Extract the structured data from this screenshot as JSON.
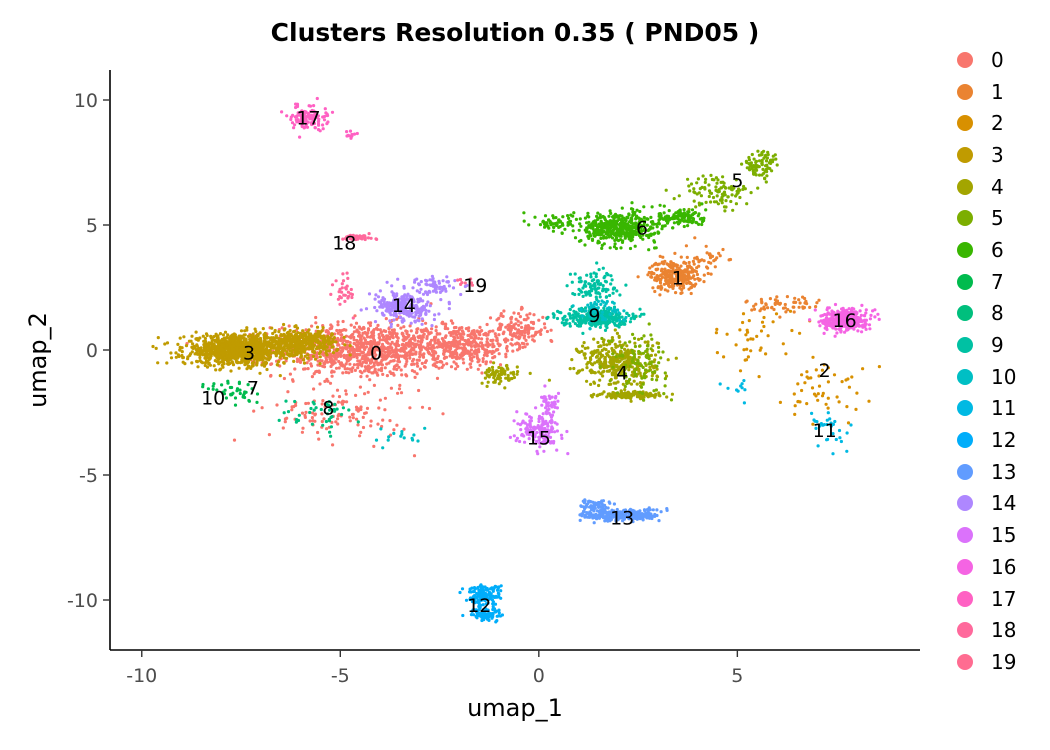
{
  "chart_data": {
    "type": "scatter",
    "title": "Clusters Resolution 0.35 ( PND05 )",
    "xlabel": "umap_1",
    "ylabel": "umap_2",
    "xlim": [
      -10.8,
      9.6
    ],
    "ylim": [
      -12.0,
      11.2
    ],
    "xticks": [
      -10,
      -5,
      0,
      5
    ],
    "yticks": [
      -10,
      -5,
      0,
      5,
      10
    ],
    "grid": false,
    "legend_position": "right",
    "point_size": 1.6,
    "series": [
      {
        "name": "0",
        "color": "#F8766D",
        "label_pos": [
          -4.1,
          -0.1
        ],
        "blobs": [
          [
            -4.5,
            0.0,
            1.8,
            0.9,
            900
          ],
          [
            -2.0,
            0.2,
            1.2,
            0.7,
            400
          ],
          [
            -0.5,
            0.8,
            0.6,
            0.6,
            150
          ],
          [
            -5.0,
            -2.5,
            1.5,
            1.0,
            120
          ]
        ]
      },
      {
        "name": "1",
        "color": "#EA8331",
        "label_pos": [
          3.5,
          2.9
        ],
        "blobs": [
          [
            3.4,
            3.0,
            0.5,
            0.5,
            260
          ],
          [
            6.2,
            1.8,
            0.8,
            0.4,
            60
          ],
          [
            4.2,
            3.5,
            0.4,
            0.6,
            40
          ]
        ]
      },
      {
        "name": "2",
        "color": "#D89000",
        "label_pos": [
          7.2,
          -0.8
        ],
        "blobs": [
          [
            7.2,
            -1.5,
            0.8,
            1.2,
            50
          ],
          [
            5.5,
            0.5,
            0.9,
            0.9,
            40
          ]
        ]
      },
      {
        "name": "3",
        "color": "#C09B00",
        "label_pos": [
          -7.3,
          -0.1
        ],
        "blobs": [
          [
            -7.6,
            0.0,
            1.1,
            0.5,
            1000
          ],
          [
            -6.0,
            0.3,
            0.8,
            0.4,
            400
          ]
        ]
      },
      {
        "name": "4",
        "color": "#A3A500",
        "label_pos": [
          2.1,
          -0.9
        ],
        "blobs": [
          [
            2.0,
            -0.5,
            0.8,
            0.8,
            360
          ],
          [
            2.3,
            -1.8,
            0.6,
            0.1,
            150
          ],
          [
            -1.0,
            -1.0,
            0.4,
            0.3,
            80
          ]
        ]
      },
      {
        "name": "5",
        "color": "#7CAE00",
        "label_pos": [
          5.0,
          6.8
        ],
        "blobs": [
          [
            4.5,
            6.3,
            0.7,
            0.6,
            100
          ],
          [
            5.6,
            7.4,
            0.4,
            0.5,
            80
          ],
          [
            2.5,
            -0.5,
            0.6,
            1.0,
            100
          ]
        ]
      },
      {
        "name": "6",
        "color": "#39B600",
        "label_pos": [
          2.6,
          4.9
        ],
        "blobs": [
          [
            2.0,
            4.9,
            0.8,
            0.5,
            450
          ],
          [
            3.6,
            5.3,
            0.5,
            0.35,
            120
          ],
          [
            0.4,
            5.1,
            0.4,
            0.3,
            60
          ]
        ]
      },
      {
        "name": "7",
        "color": "#00BB4E",
        "label_pos": [
          -7.2,
          -1.5
        ],
        "blobs": [
          [
            -7.6,
            -1.7,
            0.6,
            0.5,
            40
          ]
        ]
      },
      {
        "name": "8",
        "color": "#00BF7D",
        "label_pos": [
          -5.3,
          -2.3
        ],
        "blobs": [
          [
            -5.5,
            -2.6,
            0.8,
            0.6,
            40
          ]
        ]
      },
      {
        "name": "9",
        "color": "#00C1A3",
        "label_pos": [
          1.4,
          1.4
        ],
        "blobs": [
          [
            1.4,
            1.3,
            0.7,
            0.3,
            300
          ],
          [
            1.4,
            2.6,
            0.5,
            0.5,
            100
          ]
        ]
      },
      {
        "name": "10",
        "color": "#00BFC4",
        "label_pos": [
          -8.2,
          -1.9
        ],
        "blobs": [
          [
            1.5,
            1.6,
            0.5,
            0.4,
            60
          ],
          [
            -3.5,
            -3.5,
            0.6,
            0.5,
            15
          ]
        ]
      },
      {
        "name": "11",
        "color": "#00B9E3",
        "label_pos": [
          7.2,
          -3.2
        ],
        "blobs": [
          [
            7.3,
            -3.2,
            0.5,
            0.8,
            30
          ],
          [
            5.0,
            -1.5,
            0.3,
            0.3,
            10
          ]
        ]
      },
      {
        "name": "12",
        "color": "#00ADFA",
        "label_pos": [
          -1.5,
          -10.2
        ],
        "blobs": [
          [
            -1.4,
            -9.8,
            0.35,
            0.35,
            150
          ],
          [
            -1.3,
            -10.6,
            0.35,
            0.2,
            80
          ]
        ]
      },
      {
        "name": "13",
        "color": "#619CFF",
        "label_pos": [
          2.1,
          -6.7
        ],
        "blobs": [
          [
            2.1,
            -6.6,
            0.8,
            0.2,
            260
          ],
          [
            1.4,
            -6.2,
            0.4,
            0.2,
            60
          ]
        ]
      },
      {
        "name": "14",
        "color": "#AE87FF",
        "label_pos": [
          -3.4,
          1.8
        ],
        "blobs": [
          [
            -3.4,
            1.7,
            0.6,
            0.5,
            260
          ],
          [
            -2.6,
            2.6,
            0.4,
            0.3,
            60
          ]
        ]
      },
      {
        "name": "15",
        "color": "#DB72FB",
        "label_pos": [
          0.0,
          -3.5
        ],
        "blobs": [
          [
            0.0,
            -3.2,
            0.45,
            0.55,
            160
          ],
          [
            0.3,
            -2.2,
            0.2,
            0.4,
            40
          ]
        ]
      },
      {
        "name": "16",
        "color": "#F564E3",
        "label_pos": [
          7.7,
          1.2
        ],
        "blobs": [
          [
            7.7,
            1.2,
            0.45,
            0.35,
            400
          ]
        ]
      },
      {
        "name": "17",
        "color": "#FF61C3",
        "label_pos": [
          -5.8,
          9.3
        ],
        "blobs": [
          [
            -5.8,
            9.3,
            0.4,
            0.4,
            120
          ],
          [
            -4.7,
            8.6,
            0.15,
            0.1,
            12
          ]
        ]
      },
      {
        "name": "18",
        "color": "#FF699C",
        "label_pos": [
          -4.9,
          4.3
        ],
        "blobs": [
          [
            -4.6,
            4.5,
            0.4,
            0.1,
            40
          ],
          [
            -4.9,
            2.4,
            0.2,
            0.6,
            30
          ]
        ]
      },
      {
        "name": "19",
        "color": "#FF6C91",
        "label_pos": [
          -1.6,
          2.6
        ],
        "blobs": [
          [
            -1.8,
            2.7,
            0.2,
            0.2,
            10
          ]
        ]
      }
    ]
  }
}
